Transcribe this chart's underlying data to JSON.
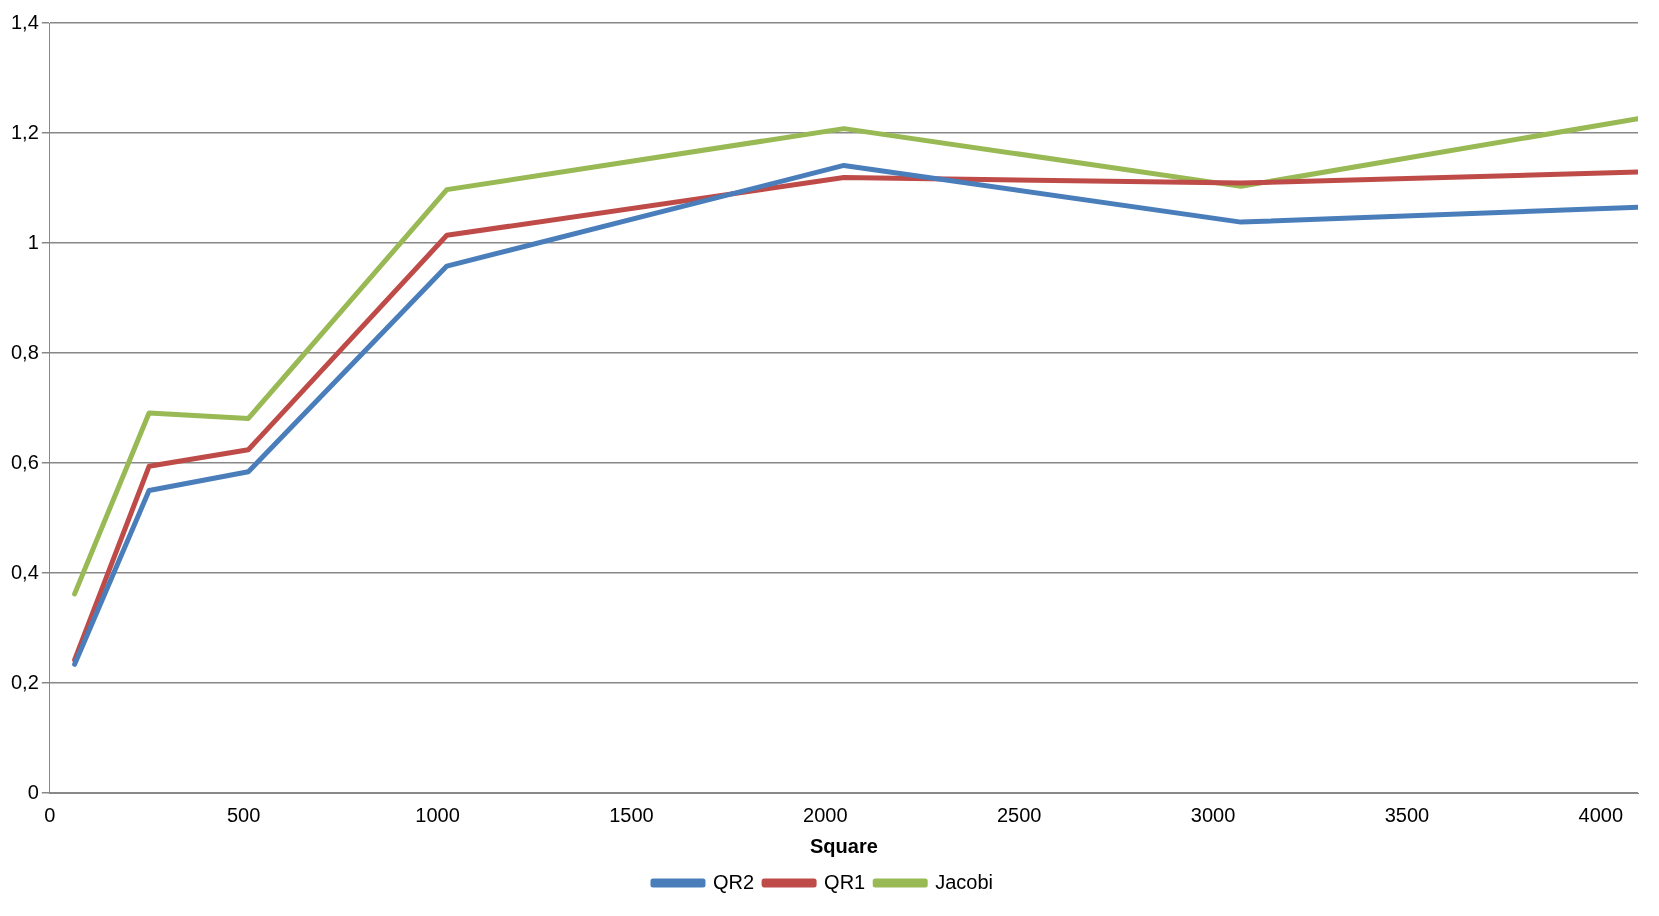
{
  "chart_data": {
    "type": "line",
    "xlabel": "Square",
    "x": [
      64,
      256,
      512,
      1024,
      2048,
      3072,
      4096
    ],
    "series": [
      {
        "name": "QR2",
        "color": "#4a7ebb",
        "values": [
          0.234,
          0.55,
          0.584,
          0.958,
          1.141,
          1.038,
          1.065
        ]
      },
      {
        "name": "QR1",
        "color": "#be4b48",
        "values": [
          0.242,
          0.594,
          0.624,
          1.014,
          1.119,
          1.109,
          1.129
        ]
      },
      {
        "name": "Jacobi",
        "color": "#98b954",
        "values": [
          0.362,
          0.691,
          0.681,
          1.097,
          1.208,
          1.103,
          1.226
        ]
      }
    ],
    "xlim": [
      0,
      4096
    ],
    "xticks": [
      0,
      500,
      1000,
      1500,
      2000,
      2500,
      3000,
      3500,
      4000
    ],
    "ylim": [
      0,
      1.4
    ],
    "yticks": [
      0,
      {
        "value": 0.2,
        "label": "0,2"
      },
      {
        "value": 0.4,
        "label": "0,4"
      },
      {
        "value": 0.6,
        "label": "0,6"
      },
      {
        "value": 0.8,
        "label": "0,8"
      },
      1,
      {
        "value": 1.2,
        "label": "1,2"
      },
      {
        "value": 1.4,
        "label": "1,4"
      }
    ],
    "grid": "y",
    "legend": "bottom",
    "marker": "none",
    "line_style": "solid"
  }
}
